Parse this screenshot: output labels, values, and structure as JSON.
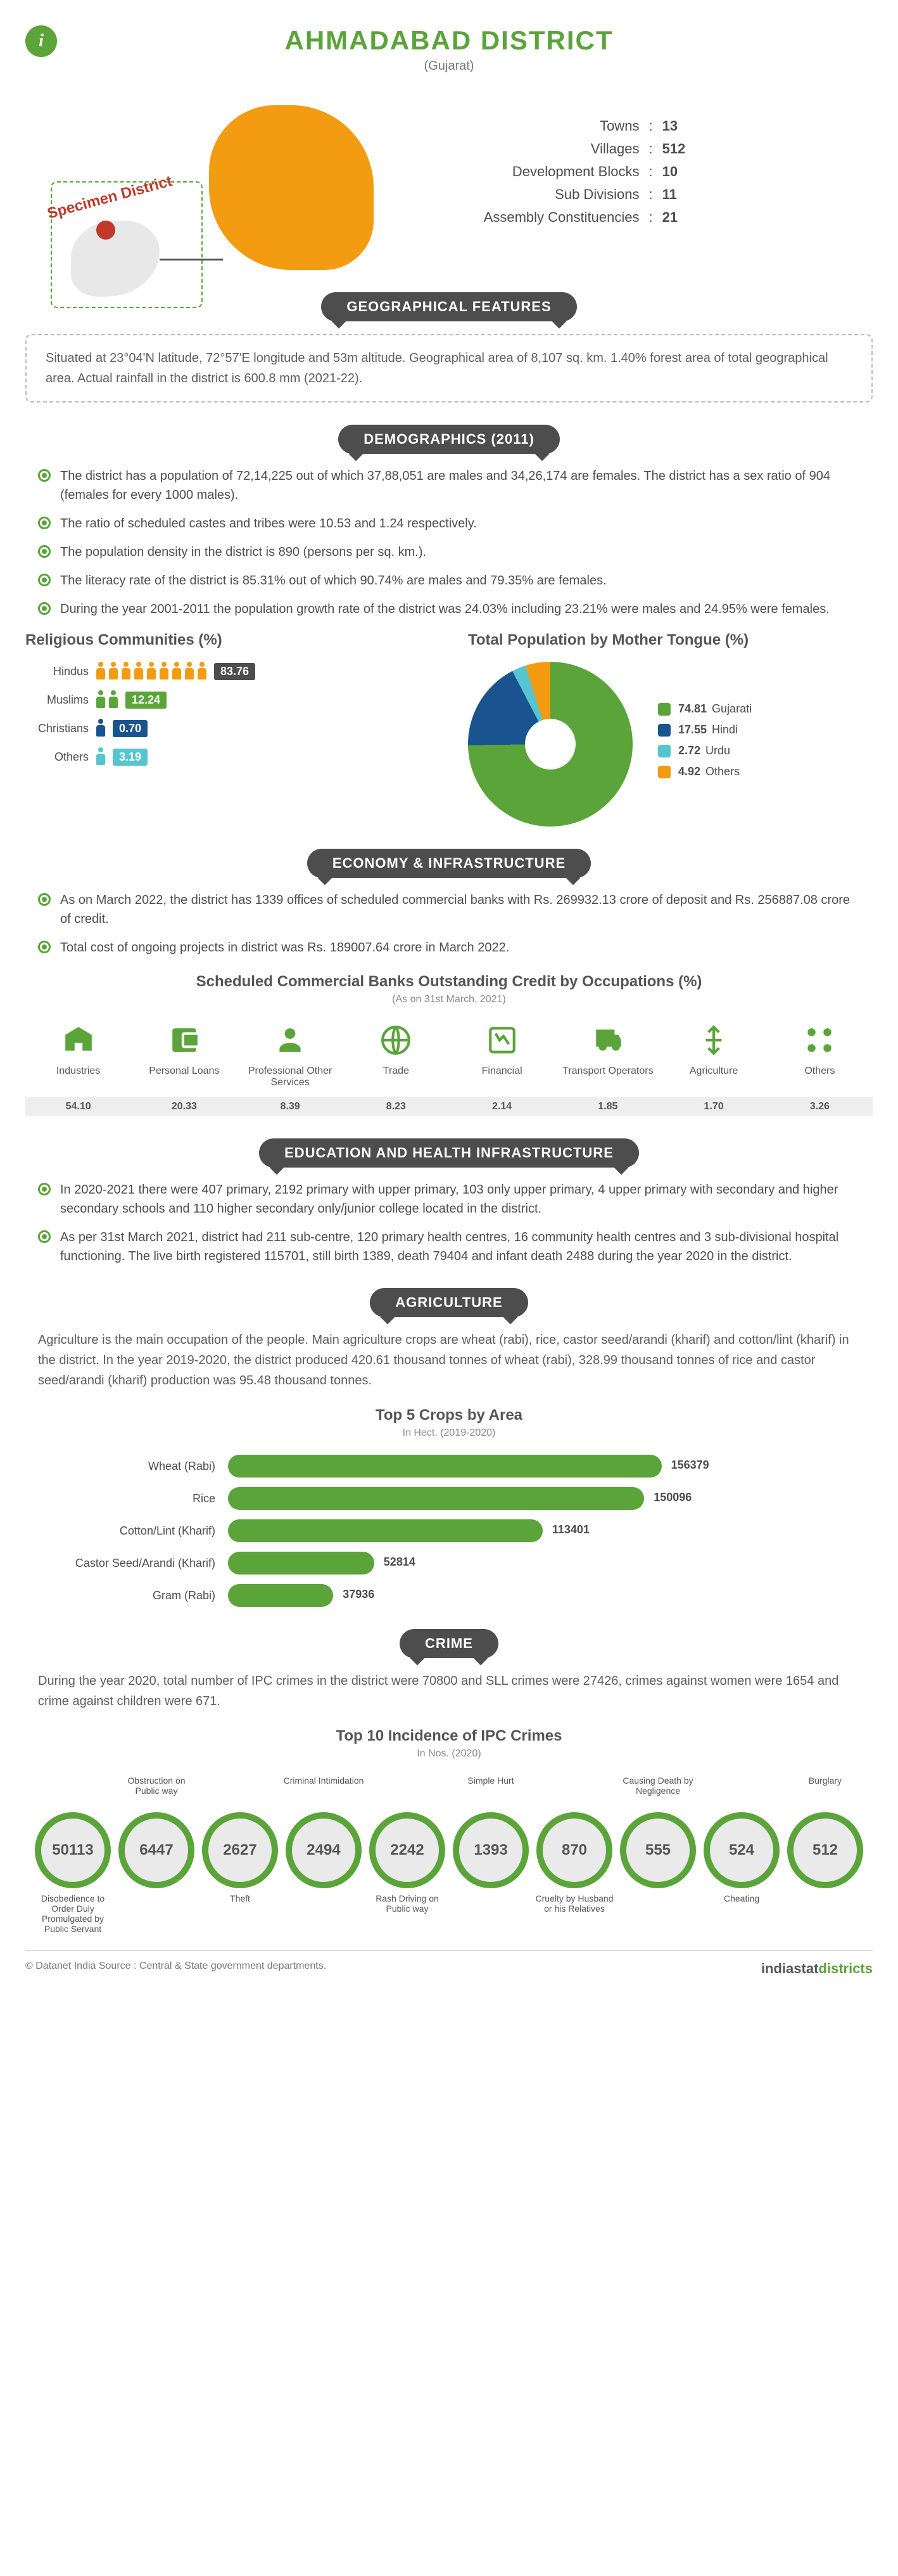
{
  "header": {
    "title": "AHMADABAD DISTRICT",
    "subtitle": "(Gujarat)",
    "specimen_label": "Specimen District"
  },
  "summary_stats": [
    {
      "label": "Towns",
      "value": "13"
    },
    {
      "label": "Villages",
      "value": "512"
    },
    {
      "label": "Development Blocks",
      "value": "10"
    },
    {
      "label": "Sub Divisions",
      "value": "11"
    },
    {
      "label": "Assembly Constituencies",
      "value": "21"
    }
  ],
  "sections": {
    "geo": {
      "title": "GEOGRAPHICAL FEATURES",
      "text": "Situated at 23°04'N latitude, 72°57'E longitude and 53m altitude. Geographical area of 8,107 sq. km. 1.40% forest area of total geographical area. Actual rainfall in the district is 600.8 mm (2021-22)."
    },
    "demo": {
      "title": "DEMOGRAPHICS (2011)",
      "bullets": [
        "The district has a population of 72,14,225 out of which 37,88,051 are males and 34,26,174 are females. The district has a sex ratio of 904 (females for every 1000 males).",
        "The ratio of scheduled castes and tribes were 10.53 and 1.24 respectively.",
        "The population density in the district is 890 (persons per sq. km.).",
        "The literacy rate of the district is 85.31% out of which 90.74% are males and 79.35% are females.",
        "During the year 2001-2011 the population growth rate of the district was 24.03% including 23.21% were males and 24.95% were females."
      ],
      "religion_title": "Religious Communities (%)",
      "religion": [
        {
          "label": "Hindus",
          "value": "83.76",
          "color": "#f39c12",
          "icons": 9
        },
        {
          "label": "Muslims",
          "value": "12.24",
          "color": "#5aa43a",
          "icons": 2
        },
        {
          "label": "Christians",
          "value": "0.70",
          "color": "#1a5490",
          "icons": 1
        },
        {
          "label": "Others",
          "value": "3.19",
          "color": "#56c5d0",
          "icons": 1
        }
      ],
      "tongue_title": "Total Population by Mother Tongue (%)",
      "tongue": [
        {
          "label": "Gujarati",
          "value": "74.81",
          "color": "#5aa43a"
        },
        {
          "label": "Hindi",
          "value": "17.55",
          "color": "#1a5490"
        },
        {
          "label": "Urdu",
          "value": "2.72",
          "color": "#56c5d0"
        },
        {
          "label": "Others",
          "value": "4.92",
          "color": "#f39c12"
        }
      ]
    },
    "econ": {
      "title": "ECONOMY & INFRASTRUCTURE",
      "bullets": [
        "As on March 2022, the district has 1339 offices of scheduled commercial banks with Rs. 269932.13 crore of deposit and Rs. 256887.08 crore of credit.",
        "Total cost of ongoing projects in district was Rs. 189007.64 crore in March 2022."
      ],
      "credit_title": "Scheduled Commercial Banks Outstanding Credit by Occupations (%)",
      "credit_note": "(As on 31st March, 2021)",
      "occupations": [
        {
          "label": "Industries",
          "value": "54.10"
        },
        {
          "label": "Personal Loans",
          "value": "20.33"
        },
        {
          "label": "Professional Other Services",
          "value": "8.39"
        },
        {
          "label": "Trade",
          "value": "8.23"
        },
        {
          "label": "Financial",
          "value": "2.14"
        },
        {
          "label": "Transport Operators",
          "value": "1.85"
        },
        {
          "label": "Agriculture",
          "value": "1.70"
        },
        {
          "label": "Others",
          "value": "3.26"
        }
      ]
    },
    "eduhealth": {
      "title": "EDUCATION AND HEALTH INFRASTRUCTURE",
      "bullets": [
        "In 2020-2021 there were 407 primary, 2192 primary with upper primary, 103 only upper primary, 4 upper primary with secondary and higher secondary schools and 110 higher secondary only/junior college located in the district.",
        "As per 31st March 2021, district had 211 sub-centre, 120 primary health centres, 16 community health centres and 3 sub-divisional hospital functioning. The live birth registered 115701, still birth 1389, death 79404 and infant death 2488 during the year 2020 in the district."
      ]
    },
    "agri": {
      "title": "AGRICULTURE",
      "desc": "Agriculture is the main occupation of the people. Main agriculture crops are wheat (rabi), rice, castor seed/arandi (kharif) and cotton/lint (kharif) in the district. In the year 2019-2020, the district produced 420.61 thousand tonnes of wheat (rabi), 328.99 thousand tonnes of rice and castor seed/arandi (kharif) production was 95.48 thousand tonnes.",
      "crops_title": "Top 5 Crops by Area",
      "crops_note": "In Hect. (2019-2020)",
      "crops": [
        {
          "label": "Wheat (Rabi)",
          "value": 156379
        },
        {
          "label": "Rice",
          "value": 150096
        },
        {
          "label": "Cotton/Lint (Kharif)",
          "value": 113401
        },
        {
          "label": "Castor Seed/Arandi (Kharif)",
          "value": 52814
        },
        {
          "label": "Gram (Rabi)",
          "value": 37936
        }
      ],
      "crops_max": 156379,
      "bar_color": "#5aa43a"
    },
    "crime": {
      "title": "CRIME",
      "desc": "During the year 2020, total number of IPC crimes in the district were 70800 and SLL crimes were 27426, crimes against women were 1654 and crime against children were 671.",
      "ipc_title": "Top 10 Incidence of IPC Crimes",
      "ipc_note": "In Nos. (2020)",
      "ipc": [
        {
          "label": "Disobedience to Order Duly Promulgated by Public Servant",
          "value": "50113",
          "pos": "bottom"
        },
        {
          "label": "Obstruction on Public way",
          "value": "6447",
          "pos": "top"
        },
        {
          "label": "Theft",
          "value": "2627",
          "pos": "bottom"
        },
        {
          "label": "Criminal Intimidation",
          "value": "2494",
          "pos": "top"
        },
        {
          "label": "Rash Driving on Public way",
          "value": "2242",
          "pos": "bottom"
        },
        {
          "label": "Simple Hurt",
          "value": "1393",
          "pos": "top"
        },
        {
          "label": "Cruelty by Husband or his Relatives",
          "value": "870",
          "pos": "bottom"
        },
        {
          "label": "Causing Death by Negligence",
          "value": "555",
          "pos": "top"
        },
        {
          "label": "Cheating",
          "value": "524",
          "pos": "bottom"
        },
        {
          "label": "Burglary",
          "value": "512",
          "pos": "top"
        }
      ]
    }
  },
  "footer": {
    "left": "© Datanet India  Source : Central & State government departments.",
    "brand_pre": "indiastat",
    "brand_post": "districts"
  },
  "watermark": "indiastatdistricts.com",
  "colors": {
    "primary_green": "#5aa43a",
    "dark_gray": "#4d4d4d",
    "orange": "#f39c12"
  }
}
